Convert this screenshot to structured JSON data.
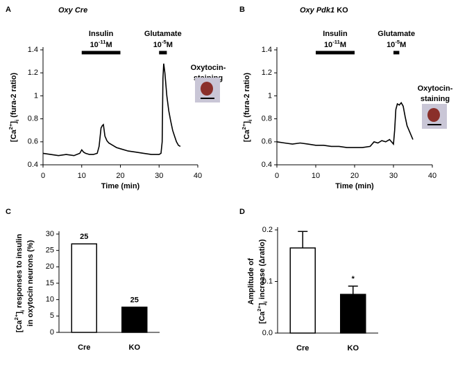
{
  "chart_data": [
    {
      "type": "line",
      "label": "A",
      "title": [
        [
          {
            "text": "Oxy Cre",
            "italic": true
          }
        ]
      ],
      "xlabel": [
        [
          {
            "text": "Time (min)"
          }
        ]
      ],
      "ylabel": [
        [
          {
            "text": "[Ca"
          },
          {
            "text": "2+",
            "shift": "sup"
          },
          {
            "text": "]"
          },
          {
            "text": "i",
            "shift": "sub"
          },
          {
            "text": "  (fura-2 ratio)"
          }
        ]
      ],
      "x": [
        0,
        2,
        4,
        6,
        8,
        9.5,
        10,
        10.5,
        11,
        12,
        13,
        14,
        14.5,
        15,
        15.3,
        15.6,
        16,
        16.5,
        17,
        18,
        19,
        20,
        22,
        24,
        26,
        28,
        30,
        30.5,
        30.8,
        31,
        31.2,
        31.5,
        32,
        32.5,
        33,
        33.5,
        34,
        34.5,
        35,
        35.5
      ],
      "values": [
        0.5,
        0.49,
        0.48,
        0.49,
        0.48,
        0.5,
        0.53,
        0.51,
        0.5,
        0.49,
        0.49,
        0.5,
        0.56,
        0.72,
        0.74,
        0.75,
        0.65,
        0.61,
        0.59,
        0.57,
        0.55,
        0.54,
        0.52,
        0.51,
        0.5,
        0.49,
        0.49,
        0.5,
        0.6,
        1.15,
        1.28,
        1.2,
        1.0,
        0.87,
        0.78,
        0.7,
        0.65,
        0.6,
        0.57,
        0.56
      ],
      "color": "#000000",
      "xlim": [
        0,
        40
      ],
      "xticks": [
        0,
        10,
        20,
        30,
        40
      ],
      "ylim": [
        0.4,
        1.4
      ],
      "yticks": [
        0.4,
        0.6,
        0.8,
        1.0,
        1.2,
        1.4
      ],
      "stimuli": [
        {
          "label": "Insulin",
          "conc": [
            {
              "text": "10"
            },
            {
              "text": "-11",
              "shift": "sup"
            },
            {
              "text": "M"
            }
          ],
          "start": 10,
          "end": 20
        },
        {
          "label": "Glutamate",
          "conc": [
            {
              "text": "10"
            },
            {
              "text": "-5",
              "shift": "sup"
            },
            {
              "text": "M"
            }
          ],
          "start": 30,
          "end": 32
        }
      ],
      "inset_label": [
        "Oxytocin-",
        "staining"
      ]
    },
    {
      "type": "line",
      "label": "B",
      "title": [
        [
          {
            "text": "Oxy Pdk1",
            "italic": true
          },
          {
            "text": " KO"
          }
        ]
      ],
      "xlabel": [
        [
          {
            "text": "Time (min)"
          }
        ]
      ],
      "ylabel": [
        [
          {
            "text": "[Ca"
          },
          {
            "text": "2+",
            "shift": "sup"
          },
          {
            "text": "]"
          },
          {
            "text": "i",
            "shift": "sub"
          },
          {
            "text": "  (fura-2 ratio)"
          }
        ]
      ],
      "x": [
        0,
        2,
        4,
        6,
        8,
        10,
        12,
        14,
        16,
        18,
        20,
        22,
        24,
        25,
        26,
        27,
        28,
        29,
        30,
        30.3,
        30.6,
        31,
        31.5,
        32,
        32.5,
        33,
        33.5,
        34,
        34.5,
        35
      ],
      "values": [
        0.6,
        0.59,
        0.58,
        0.59,
        0.58,
        0.57,
        0.57,
        0.56,
        0.56,
        0.55,
        0.55,
        0.55,
        0.56,
        0.6,
        0.59,
        0.61,
        0.6,
        0.62,
        0.58,
        0.7,
        0.88,
        0.93,
        0.92,
        0.94,
        0.91,
        0.82,
        0.74,
        0.7,
        0.66,
        0.62
      ],
      "color": "#000000",
      "xlim": [
        0,
        40
      ],
      "xticks": [
        0,
        10,
        20,
        30,
        40
      ],
      "ylim": [
        0.4,
        1.4
      ],
      "yticks": [
        0.4,
        0.6,
        0.8,
        1.0,
        1.2,
        1.4
      ],
      "stimuli": [
        {
          "label": "Insulin",
          "conc": [
            {
              "text": "10"
            },
            {
              "text": "-11",
              "shift": "sup"
            },
            {
              "text": "M"
            }
          ],
          "start": 10,
          "end": 20
        },
        {
          "label": "Glutamate",
          "conc": [
            {
              "text": "10"
            },
            {
              "text": "-5",
              "shift": "sup"
            },
            {
              "text": "M"
            }
          ],
          "start": 30,
          "end": 31.5
        }
      ],
      "inset_label": [
        "Oxytocin-",
        "staining"
      ]
    },
    {
      "type": "bar",
      "label": "C",
      "ylabel": [
        [
          {
            "text": "[Ca"
          },
          {
            "text": "2+",
            "shift": "sup"
          },
          {
            "text": "]"
          },
          {
            "text": "i",
            "shift": "sub"
          },
          {
            "text": " responses to insulin"
          }
        ],
        [
          {
            "text": "in oxytocin neurons (%)"
          }
        ]
      ],
      "categories": [
        "Cre",
        "KO"
      ],
      "values": [
        27,
        7.7
      ],
      "colors": [
        "#ffffff",
        "#000000"
      ],
      "n_labels": [
        "25",
        "25"
      ],
      "ylim": [
        0,
        30
      ],
      "yticks": [
        0,
        5,
        10,
        15,
        20,
        25,
        30
      ]
    },
    {
      "type": "bar",
      "label": "D",
      "ylabel": [
        [
          {
            "text": "Amplitude of"
          }
        ],
        [
          {
            "text": "[Ca"
          },
          {
            "text": "2+",
            "shift": "sup"
          },
          {
            "text": "]"
          },
          {
            "text": "i",
            "shift": "sub"
          },
          {
            "text": " increase (Δratio)"
          }
        ]
      ],
      "categories": [
        "Cre",
        "KO"
      ],
      "values": [
        0.165,
        0.075
      ],
      "errors": [
        0.032,
        0.016
      ],
      "colors": [
        "#ffffff",
        "#000000"
      ],
      "annotations": [
        {
          "text": "*",
          "category": 1
        }
      ],
      "ylim": [
        0,
        0.2
      ],
      "yticks": [
        {
          "value": 0,
          "label": "0.0"
        },
        0.1,
        0.2
      ]
    }
  ]
}
